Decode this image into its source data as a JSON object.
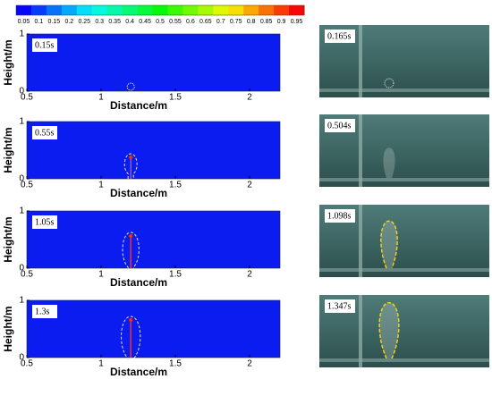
{
  "colorbar": {
    "ticks": [
      0.05,
      0.1,
      0.15,
      0.2,
      0.25,
      0.3,
      0.35,
      0.4,
      0.45,
      0.5,
      0.55,
      0.6,
      0.65,
      0.7,
      0.75,
      0.8,
      0.85,
      0.9,
      0.95
    ]
  },
  "panels": [
    {
      "time": "0.15s",
      "x_label": "Distance/m",
      "y_label": "Height/m",
      "xticks": [
        0.5,
        1,
        1.5,
        2
      ],
      "yticks": [
        1,
        0
      ]
    },
    {
      "time": "0.55s",
      "x_label": "Distance/m",
      "y_label": "Height/m",
      "xticks": [
        0.5,
        1,
        1.5,
        2
      ],
      "yticks": [
        1,
        0
      ]
    },
    {
      "time": "1.05s",
      "x_label": "Distance/m",
      "y_label": "Height/m",
      "xticks": [
        0.5,
        1,
        1.5,
        2
      ],
      "yticks": [
        1,
        0
      ]
    },
    {
      "time": "1.3s",
      "x_label": "Distance/m",
      "y_label": "Height/m",
      "xticks": [
        0.5,
        1,
        1.5,
        2
      ],
      "yticks": [
        1,
        0
      ]
    }
  ],
  "photos": [
    {
      "time": "0.165s"
    },
    {
      "time": "0.504s"
    },
    {
      "time": "1.098s"
    },
    {
      "time": "1.347s"
    }
  ]
}
